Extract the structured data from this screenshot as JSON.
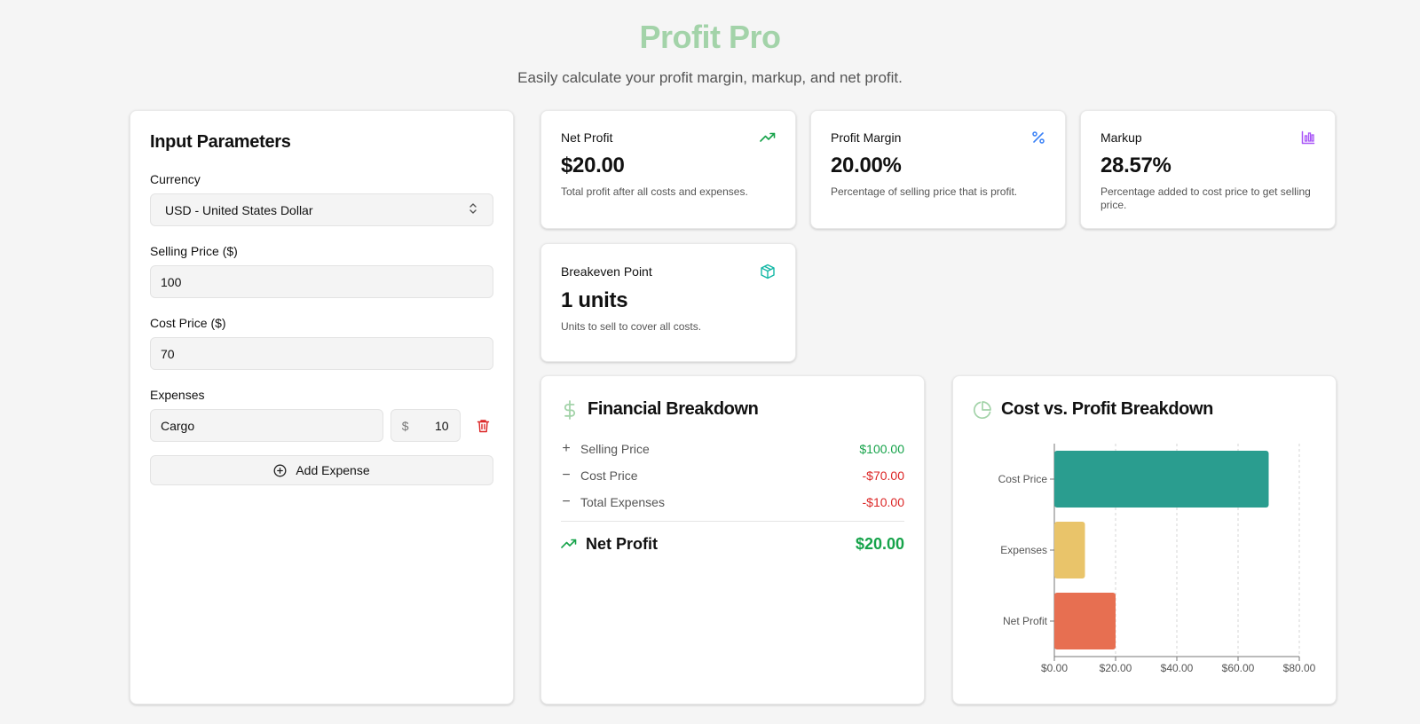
{
  "header": {
    "title": "Profit Pro",
    "subtitle": "Easily calculate your profit margin, markup, and net profit."
  },
  "inputs": {
    "title": "Input Parameters",
    "currency_label": "Currency",
    "currency_value": "USD - United States Dollar",
    "selling_label": "Selling Price ($)",
    "selling_value": "100",
    "cost_label": "Cost Price ($)",
    "cost_value": "70",
    "expenses_label": "Expenses",
    "expenses": [
      {
        "name": "Cargo",
        "currency": "$",
        "amount": "10"
      }
    ],
    "add_expense_label": "Add Expense"
  },
  "stats": {
    "net_profit": {
      "label": "Net Profit",
      "value": "$20.00",
      "desc": "Total profit after all costs and expenses.",
      "icon": "trending-up-icon"
    },
    "profit_margin": {
      "label": "Profit Margin",
      "value": "20.00%",
      "desc": "Percentage of selling price that is profit.",
      "icon": "percent-icon"
    },
    "markup": {
      "label": "Markup",
      "value": "28.57%",
      "desc": "Percentage added to cost price to get selling price.",
      "icon": "bar-chart-icon"
    },
    "breakeven": {
      "label": "Breakeven Point",
      "value": "1 units",
      "desc": "Units to sell to cover all costs.",
      "icon": "package-icon"
    }
  },
  "breakdown": {
    "title": "Financial Breakdown",
    "rows": [
      {
        "sign": "+",
        "label": "Selling Price",
        "value": "$100.00",
        "kind": "pos"
      },
      {
        "sign": "−",
        "label": "Cost Price",
        "value": "-$70.00",
        "kind": "neg"
      },
      {
        "sign": "−",
        "label": "Total Expenses",
        "value": "-$10.00",
        "kind": "neg"
      }
    ],
    "total_label": "Net Profit",
    "total_value": "$20.00"
  },
  "chart": {
    "title": "Cost vs. Profit Breakdown"
  },
  "chart_data": {
    "type": "bar",
    "orientation": "horizontal",
    "categories": [
      "Cost Price",
      "Expenses",
      "Net Profit"
    ],
    "values": [
      70,
      10,
      20
    ],
    "colors": [
      "#2a9d8f",
      "#e9c46a",
      "#e76f51"
    ],
    "xlim": [
      0,
      80
    ],
    "xticks": [
      "$0.00",
      "$20.00",
      "$40.00",
      "$60.00",
      "$80.00"
    ],
    "grid": "vertical-dashed"
  },
  "colors": {
    "accent_green": "#16a34a",
    "negative_red": "#dc2626",
    "title_green": "#a3d3a9"
  }
}
